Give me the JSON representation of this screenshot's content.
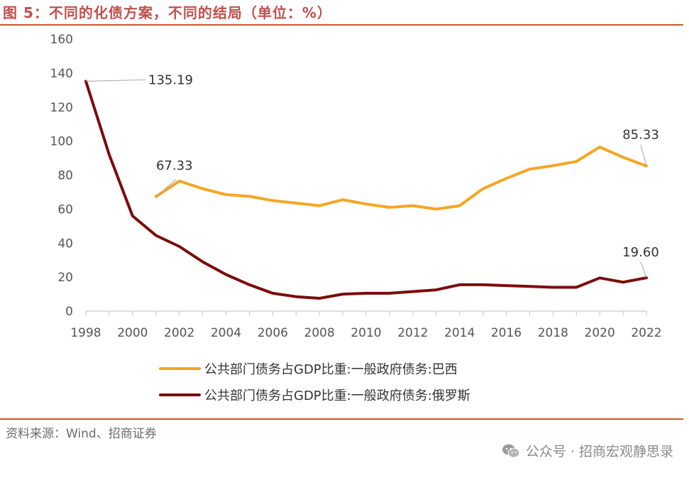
{
  "figure": {
    "title": "图 5：不同的化债方案，不同的结局（单位：%）",
    "source": "资料来源：Wind、招商证券",
    "watermark": "公众号 · 招商宏观静思录",
    "watermark_icon": "wechat-icon"
  },
  "chart_data": {
    "type": "line",
    "title": "图 5：不同的化债方案，不同的结局（单位：%）",
    "xlabel": "",
    "ylabel": "",
    "x": [
      1998,
      1999,
      2000,
      2001,
      2002,
      2003,
      2004,
      2005,
      2006,
      2007,
      2008,
      2009,
      2010,
      2011,
      2012,
      2013,
      2014,
      2015,
      2016,
      2017,
      2018,
      2019,
      2020,
      2021,
      2022
    ],
    "xticks": [
      "1998",
      "2000",
      "2002",
      "2004",
      "2006",
      "2008",
      "2010",
      "2012",
      "2014",
      "2016",
      "2018",
      "2020",
      "2022"
    ],
    "yticks": [
      "0",
      "20",
      "40",
      "60",
      "80",
      "100",
      "120",
      "140",
      "160"
    ],
    "ylim": [
      0,
      160
    ],
    "grid": false,
    "legend_position": "bottom",
    "series": [
      {
        "name": "公共部门债务占GDP比重:一般政府债务:巴西",
        "color": "#f5a623",
        "x": [
          2001,
          2002,
          2003,
          2004,
          2005,
          2006,
          2007,
          2008,
          2009,
          2010,
          2011,
          2012,
          2013,
          2014,
          2015,
          2016,
          2017,
          2018,
          2019,
          2020,
          2021,
          2022
        ],
        "values": [
          67.33,
          76.5,
          72.0,
          68.5,
          67.5,
          65.0,
          63.5,
          62.0,
          65.5,
          63.0,
          61.0,
          62.0,
          60.0,
          62.0,
          72.0,
          78.0,
          83.5,
          85.5,
          88.0,
          96.5,
          90.5,
          85.33
        ]
      },
      {
        "name": "公共部门债务占GDP比重:一般政府债务:俄罗斯",
        "color": "#7b0c0c",
        "x": [
          1998,
          1999,
          2000,
          2001,
          2002,
          2003,
          2004,
          2005,
          2006,
          2007,
          2008,
          2009,
          2010,
          2011,
          2012,
          2013,
          2014,
          2015,
          2016,
          2017,
          2018,
          2019,
          2020,
          2021,
          2022
        ],
        "values": [
          135.19,
          92.0,
          56.0,
          44.5,
          38.0,
          29.0,
          21.5,
          15.5,
          10.5,
          8.5,
          7.5,
          10.0,
          10.5,
          10.5,
          11.5,
          12.5,
          15.5,
          15.5,
          15.0,
          14.5,
          14.0,
          14.0,
          19.5,
          17.0,
          19.6
        ]
      }
    ],
    "annotations": [
      {
        "series": 1,
        "x": 1998,
        "label": "135.19"
      },
      {
        "series": 0,
        "x": 2001,
        "label": "67.33"
      },
      {
        "series": 0,
        "x": 2022,
        "label": "85.33"
      },
      {
        "series": 1,
        "x": 2022,
        "label": "19.60"
      }
    ]
  }
}
